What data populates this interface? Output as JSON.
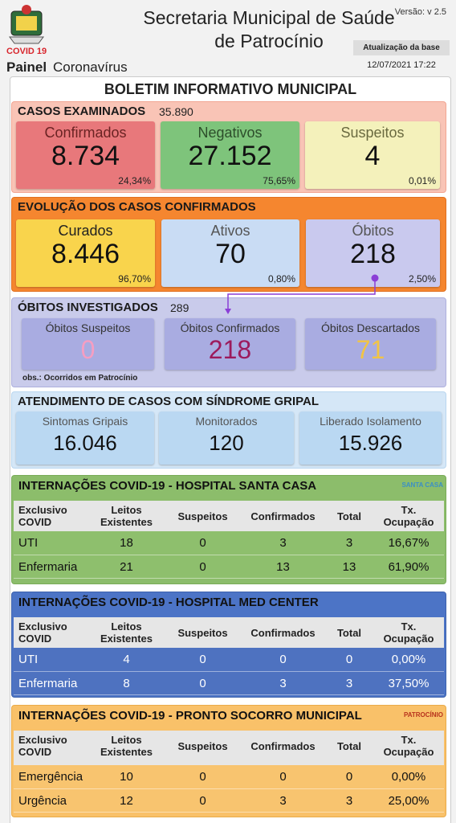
{
  "header": {
    "covid_label": "COVID 19",
    "painel": "Painel",
    "painel_sub": "Coronavírus",
    "title_lines": [
      "Secretaria Municipal de Saúde",
      "de Patrocínio"
    ],
    "version": "Versão: v 2.5",
    "update_label": "Atualização da base",
    "update_date": "12/07/2021 17:22"
  },
  "bulletin_title": "BOLETIM INFORMATIVO MUNICIPAL",
  "cases_examined": {
    "title": "CASOS EXAMINADOS",
    "total": "35.890",
    "cards": [
      {
        "label": "Confirmados",
        "value": "8.734",
        "pct": "24,34%"
      },
      {
        "label": "Negativos",
        "value": "27.152",
        "pct": "75,65%"
      },
      {
        "label": "Suspeitos",
        "value": "4",
        "pct": "0,01%"
      }
    ]
  },
  "confirmed_evolution": {
    "title": "EVOLUÇÃO DOS CASOS CONFIRMADOS",
    "cards": [
      {
        "label": "Curados",
        "value": "8.446",
        "pct": "96,70%"
      },
      {
        "label": "Ativos",
        "value": "70",
        "pct": "0,80%"
      },
      {
        "label": "Óbitos",
        "value": "218",
        "pct": "2,50%"
      }
    ]
  },
  "deaths_investigated": {
    "title": "ÓBITOS INVESTIGADOS",
    "total": "289",
    "cards": [
      {
        "label": "Óbitos Suspeitos",
        "value": "0"
      },
      {
        "label": "Óbitos Confirmados",
        "value": "218"
      },
      {
        "label": "Óbitos Descartados",
        "value": "71"
      }
    ],
    "note": "obs.: Ocorridos em Patrocínio"
  },
  "flu_syndrome": {
    "title": "ATENDIMENTO DE CASOS COM SÍNDROME GRIPAL",
    "cards": [
      {
        "label": "Sintomas Gripais",
        "value": "16.046"
      },
      {
        "label": "Monitorados",
        "value": "120"
      },
      {
        "label": "Liberado Isolamento",
        "value": "15.926"
      }
    ]
  },
  "hospitals": [
    {
      "title": "INTERNAÇÕES COVID-19 - HOSPITAL SANTA CASA",
      "logo": "SANTA CASA",
      "columns": [
        [
          "Exclusivo",
          "COVID"
        ],
        [
          "Leitos",
          "Existentes"
        ],
        [
          "Suspeitos"
        ],
        [
          "Confirmados"
        ],
        [
          "Total"
        ],
        [
          "Tx.",
          "Ocupação"
        ]
      ],
      "rows": [
        [
          "UTI",
          "18",
          "0",
          "3",
          "3",
          "16,67%"
        ],
        [
          "Enfermaria",
          "21",
          "0",
          "13",
          "13",
          "61,90%"
        ]
      ]
    },
    {
      "title": "INTERNAÇÕES COVID-19 - HOSPITAL MED CENTER",
      "columns": [
        [
          "Exclusivo",
          "COVID"
        ],
        [
          "Leitos",
          "Existentes"
        ],
        [
          "Suspeitos"
        ],
        [
          "Confirmados"
        ],
        [
          "Total"
        ],
        [
          "Tx.",
          "Ocupação"
        ]
      ],
      "rows": [
        [
          "UTI",
          "4",
          "0",
          "0",
          "0",
          "0,00%"
        ],
        [
          "Enfermaria",
          "8",
          "0",
          "3",
          "3",
          "37,50%"
        ]
      ]
    },
    {
      "title": "INTERNAÇÕES COVID-19 - PRONTO SOCORRO MUNICIPAL",
      "logo": "PATROCÍNIO",
      "columns": [
        [
          "Exclusivo",
          "COVID"
        ],
        [
          "Leitos",
          "Existentes"
        ],
        [
          "Suspeitos"
        ],
        [
          "Confirmados"
        ],
        [
          "Total"
        ],
        [
          "Tx.",
          "Ocupação"
        ]
      ],
      "rows": [
        [
          "Emergência",
          "10",
          "0",
          "0",
          "0",
          "0,00%"
        ],
        [
          "Urgência",
          "12",
          "0",
          "3",
          "3",
          "25,00%"
        ]
      ]
    }
  ]
}
